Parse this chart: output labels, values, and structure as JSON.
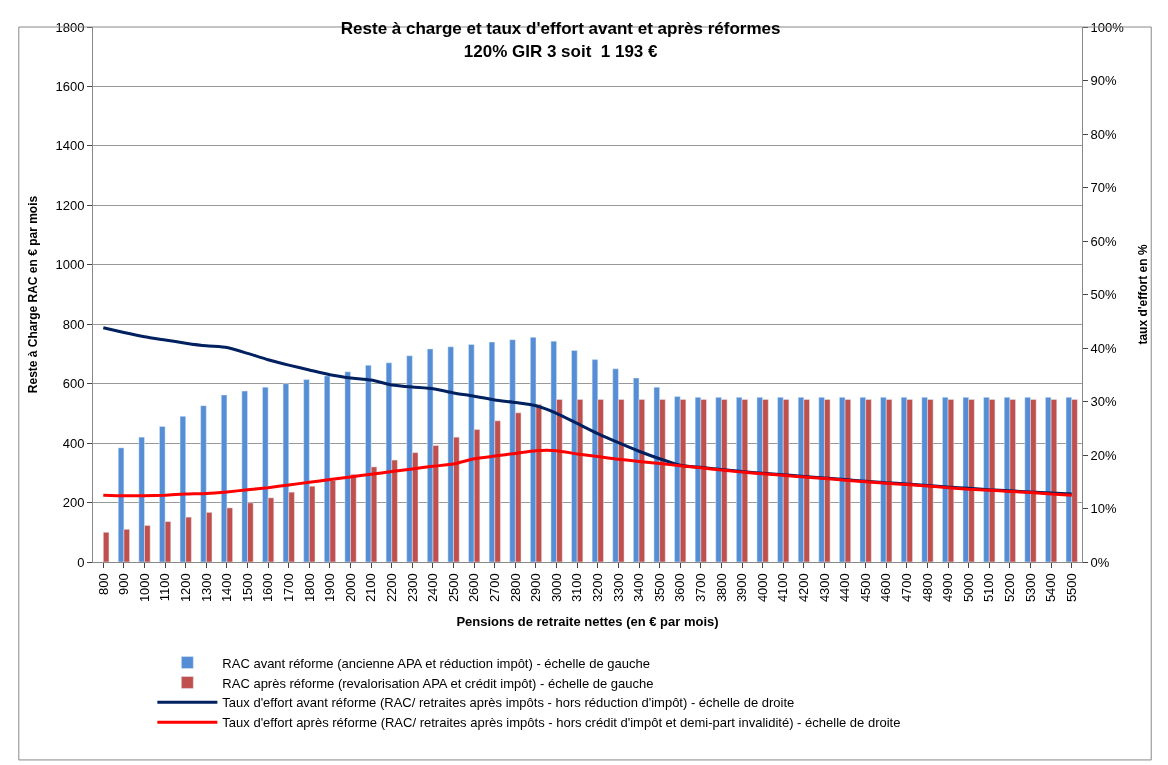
{
  "chart_data": {
    "type": "bar",
    "title": "Reste à charge et taux d'effort avant et après réformes",
    "subtitle": "120% GIR 3 soit  1 193 €",
    "xlabel": "Pensions de retraite nettes (en € par mois)",
    "ylabel": "Reste à Charge RAC en € par mois",
    "y2label": "taux d'effort en %",
    "categories": [
      "800",
      "900",
      "1000",
      "1100",
      "1200",
      "1300",
      "1400",
      "1500",
      "1600",
      "1700",
      "1800",
      "1900",
      "2000",
      "2100",
      "2200",
      "2300",
      "2400",
      "2500",
      "2600",
      "2700",
      "2800",
      "2900",
      "3000",
      "3100",
      "3200",
      "3300",
      "3400",
      "3500",
      "3600",
      "3700",
      "3800",
      "3900",
      "4000",
      "4100",
      "4200",
      "4300",
      "4400",
      "4500",
      "4600",
      "4700",
      "4800",
      "4900",
      "5000",
      "5100",
      "5200",
      "5300",
      "5400",
      "5500"
    ],
    "series": [
      {
        "name": "RAC avant réforme (ancienne APA et réduction impôt) - échelle de gauche",
        "color": "#558ed5",
        "values": [
          null,
          384,
          420,
          456,
          490,
          526,
          562,
          575,
          588,
          600,
          614,
          626,
          640,
          662,
          670,
          694,
          717,
          724,
          732,
          740,
          748,
          756,
          743,
          712,
          681,
          650,
          619,
          588,
          557,
          554,
          554,
          554,
          554,
          554,
          554,
          554,
          554,
          554,
          554,
          554,
          554,
          554,
          554,
          554,
          554,
          554,
          554,
          554
        ]
      },
      {
        "name": "RAC après réforme (revalorisation APA et crédit impôt) - échelle de gauche",
        "color": "#c0504d",
        "values": [
          100,
          110,
          123,
          136,
          151,
          167,
          182,
          199,
          216,
          235,
          255,
          275,
          295,
          320,
          343,
          368,
          392,
          420,
          446,
          475,
          502,
          530,
          547,
          547,
          547,
          547,
          547,
          547,
          547,
          547,
          547,
          547,
          547,
          547,
          547,
          547,
          547,
          547,
          547,
          547,
          547,
          547,
          547,
          547,
          547,
          547,
          547,
          547
        ]
      },
      {
        "name": "Taux d'effort avant réforme (RAC/ retraites après impôts - hors réduction d'impôt) - échelle de droite",
        "color": "#002060",
        "type": "line",
        "axis": "y2",
        "values": [
          43.8,
          42.9,
          42.1,
          41.5,
          40.9,
          40.4,
          40.1,
          39.0,
          37.8,
          36.8,
          35.9,
          35.0,
          34.4,
          34.0,
          33.1,
          32.7,
          32.4,
          31.6,
          31.0,
          30.3,
          29.8,
          29.2,
          27.8,
          25.9,
          24.0,
          22.3,
          20.7,
          19.3,
          18.1,
          17.7,
          17.3,
          16.9,
          16.6,
          16.3,
          16.0,
          15.7,
          15.4,
          15.1,
          14.8,
          14.6,
          14.3,
          14.0,
          13.8,
          13.5,
          13.3,
          13.1,
          12.9,
          12.7
        ]
      },
      {
        "name": "Taux d'effort après réforme (RAC/ retraites après impôts - hors crédit d'impôt et demi-part invalidité) - échelle de droite",
        "color": "#ff0000",
        "type": "line",
        "axis": "y2",
        "values": [
          12.5,
          12.4,
          12.4,
          12.5,
          12.7,
          12.8,
          13.1,
          13.5,
          13.9,
          14.4,
          14.9,
          15.4,
          15.9,
          16.4,
          16.9,
          17.4,
          17.9,
          18.3,
          19.3,
          19.8,
          20.3,
          20.8,
          20.8,
          20.2,
          19.7,
          19.2,
          18.8,
          18.4,
          18.0,
          17.6,
          17.2,
          16.8,
          16.5,
          16.2,
          15.9,
          15.6,
          15.3,
          15.0,
          14.7,
          14.5,
          14.2,
          13.9,
          13.6,
          13.4,
          13.2,
          13.0,
          12.7,
          12.5
        ]
      }
    ],
    "ylim": [
      0,
      1800
    ],
    "yticks": [
      0,
      200,
      400,
      600,
      800,
      1000,
      1200,
      1400,
      1600,
      1800
    ],
    "y2lim": [
      0,
      100
    ],
    "y2ticks": [
      {
        "value": 0,
        "label": "0%"
      },
      {
        "value": 10,
        "label": "10%"
      },
      {
        "value": 20,
        "label": "20%"
      },
      {
        "value": 30,
        "label": "30%"
      },
      {
        "value": 40,
        "label": "40%"
      },
      {
        "value": 50,
        "label": "50%"
      },
      {
        "value": 60,
        "label": "60%"
      },
      {
        "value": 70,
        "label": "70%"
      },
      {
        "value": 80,
        "label": "80%"
      },
      {
        "value": 90,
        "label": "90%"
      },
      {
        "value": 100,
        "label": "100%"
      }
    ],
    "grid": "y",
    "legend": "bottom",
    "marker": "none",
    "line_style": "solid"
  }
}
